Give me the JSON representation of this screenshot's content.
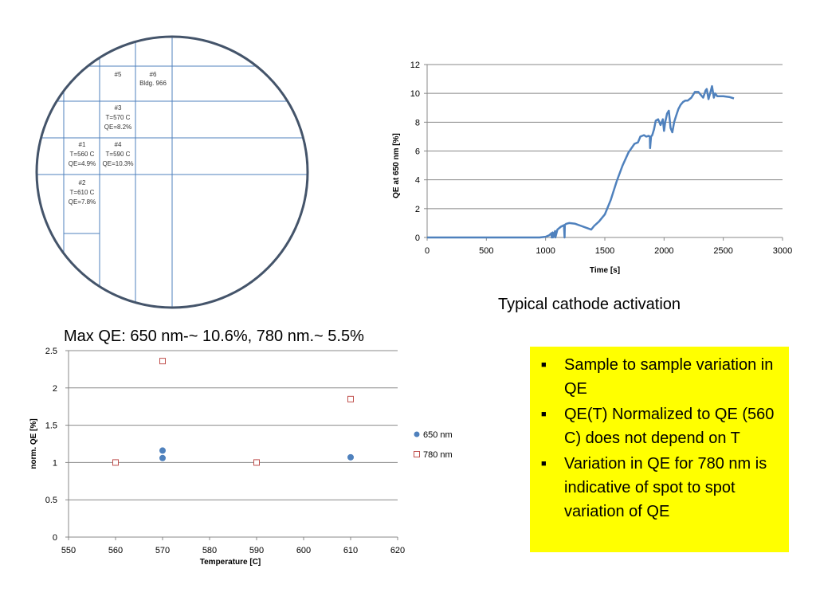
{
  "wafer_map": {
    "cells": [
      {
        "lines": [
          "#5"
        ]
      },
      {
        "lines": [
          "#6",
          "Bldg. 966"
        ]
      },
      {
        "lines": [
          "#3",
          "T=570 C",
          "QE=8.2%"
        ]
      },
      {
        "lines": [
          "#1",
          "T=560 C",
          "QE=4.9%"
        ]
      },
      {
        "lines": [
          "#4",
          "T=590 C",
          "QE=10.3%"
        ]
      },
      {
        "lines": [
          "#2",
          "T=610 C",
          "QE=7.8%"
        ]
      }
    ],
    "colors": {
      "outline": "#44546a",
      "grid": "#4f81bd"
    }
  },
  "captions": {
    "activation": "Typical cathode activation",
    "max_qe": "Max QE: 650 nm-~ 10.6%, 780 nm.~ 5.5%"
  },
  "notes": {
    "bullet": "■",
    "items": [
      "Sample to sample variation in QE",
      "QE(T) Normalized to QE (560 C) does not depend on T",
      "Variation in QE for 780 nm is indicative of spot to spot variation of QE"
    ],
    "background": "#ffff00"
  },
  "chart_data": [
    {
      "type": "line",
      "title": "",
      "xlabel": "Time [s]",
      "ylabel": "QE at 650 nm [%]",
      "xlim": [
        0,
        3000
      ],
      "ylim": [
        0,
        12
      ],
      "xticks": [
        "0",
        "500",
        "1000",
        "1500",
        "2000",
        "2500",
        "3000"
      ],
      "yticks": [
        "0",
        "2",
        "4",
        "6",
        "8",
        "10",
        "12"
      ],
      "grid": "horizontal",
      "color": "#4f81bd",
      "series": [
        {
          "x": [
            0,
            950,
            1000,
            1030,
            1050,
            1052,
            1060,
            1062,
            1080,
            1082,
            1100,
            1130,
            1155,
            1160,
            1162,
            1175,
            1200,
            1250,
            1300,
            1350,
            1385,
            1410,
            1450,
            1500,
            1550,
            1600,
            1650,
            1700,
            1750,
            1780,
            1800,
            1830,
            1850,
            1870,
            1880,
            1882,
            1890,
            1900,
            1915,
            1930,
            1950,
            1970,
            1990,
            2000,
            2010,
            2025,
            2040,
            2055,
            2070,
            2085,
            2100,
            2120,
            2140,
            2160,
            2180,
            2200,
            2230,
            2260,
            2290,
            2310,
            2330,
            2350,
            2360,
            2375,
            2395,
            2405,
            2420,
            2430,
            2450,
            2500,
            2550,
            2590
          ],
          "y": [
            0,
            0,
            0.05,
            0.15,
            0.3,
            0,
            0.35,
            0,
            0.45,
            0,
            0.55,
            0.75,
            0.85,
            0,
            0.88,
            0.95,
            1.0,
            0.95,
            0.8,
            0.65,
            0.55,
            0.8,
            1.1,
            1.6,
            2.6,
            3.9,
            5.0,
            5.9,
            6.5,
            6.6,
            7.0,
            7.1,
            7.0,
            7.05,
            7.0,
            6.2,
            7.0,
            7.1,
            7.5,
            8.1,
            8.2,
            7.8,
            8.2,
            7.4,
            8.0,
            8.6,
            8.8,
            7.6,
            7.3,
            8.0,
            8.4,
            8.9,
            9.2,
            9.4,
            9.5,
            9.5,
            9.7,
            10.1,
            10.1,
            9.9,
            9.7,
            10.2,
            10.3,
            9.6,
            10.2,
            10.5,
            9.7,
            10.0,
            9.8,
            9.8,
            9.75,
            9.65
          ]
        }
      ]
    },
    {
      "type": "scatter",
      "title": "",
      "xlabel": "Temperature [C]",
      "ylabel": "norm. QE [%]",
      "xlim": [
        550,
        620
      ],
      "ylim": [
        0,
        2.5
      ],
      "xticks": [
        "550",
        "560",
        "570",
        "580",
        "590",
        "600",
        "610",
        "620"
      ],
      "yticks": [
        "0",
        "0.5",
        "1",
        "1.5",
        "2",
        "2.5"
      ],
      "grid": "horizontal",
      "legend_position": "right",
      "series": [
        {
          "name": "650 nm",
          "marker": "filled-circle",
          "color": "#4f81bd",
          "points": [
            [
              560,
              1.0
            ],
            [
              570,
              1.16
            ],
            [
              570,
              1.06
            ],
            [
              590,
              1.0
            ],
            [
              610,
              1.07
            ]
          ]
        },
        {
          "name": "780 nm",
          "marker": "open-square",
          "color": "#c0504d",
          "points": [
            [
              560,
              1.0
            ],
            [
              570,
              2.36
            ],
            [
              590,
              1.0
            ],
            [
              610,
              1.85
            ]
          ]
        }
      ]
    }
  ]
}
